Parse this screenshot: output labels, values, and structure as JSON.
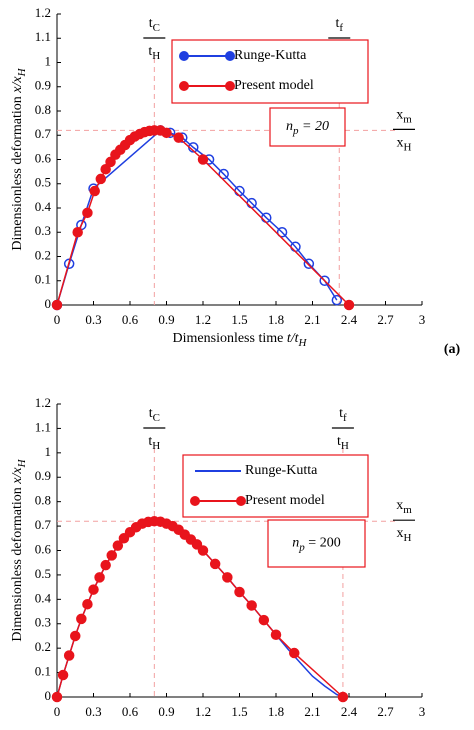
{
  "chart_data": [
    {
      "type": "line",
      "panel_label": "(a)",
      "xlabel": {
        "text": "Dimensionless time ",
        "math": "t/t",
        "sub": "H"
      },
      "ylabel": {
        "text": "Dimensionless deformation ",
        "math": "x/x",
        "sub": "H"
      },
      "xlim": [
        0,
        3
      ],
      "xticks": [
        0,
        0.3,
        0.6,
        0.9,
        1.2,
        1.5,
        1.8,
        2.1,
        2.4,
        2.7,
        3
      ],
      "ylim": [
        0,
        1.2
      ],
      "yticks": [
        0,
        0.1,
        0.2,
        0.3,
        0.4,
        0.5,
        0.6,
        0.7,
        0.8,
        0.9,
        1,
        1.1,
        1.2
      ],
      "ref_x": [
        0.8,
        2.32
      ],
      "ref_y": 0.72,
      "annotations": [
        {
          "num": "t",
          "num_sub": "C",
          "den": "t",
          "den_sub": "H"
        },
        {
          "num": "t",
          "num_sub": "f",
          "den": "t",
          "den_sub": "H"
        },
        {
          "num": "x",
          "num_sub": "m",
          "den": "x",
          "den_sub": "H"
        }
      ],
      "note": {
        "text": "n",
        "sub": "p",
        "rest": " = 20"
      },
      "series": [
        {
          "name": "Runge-Kutta",
          "color": "#1f3fe0",
          "marker": "open",
          "x": [
            0,
            0.1,
            0.2,
            0.3,
            0.85,
            0.93,
            1.03,
            1.12,
            1.25,
            1.37,
            1.5,
            1.6,
            1.72,
            1.85,
            1.96,
            2.07,
            2.2,
            2.3
          ],
          "values": [
            0,
            0.17,
            0.33,
            0.48,
            0.72,
            0.71,
            0.69,
            0.65,
            0.6,
            0.54,
            0.47,
            0.42,
            0.36,
            0.3,
            0.24,
            0.17,
            0.1,
            0.02
          ]
        },
        {
          "name": "Present model",
          "color": "#e8141c",
          "marker": "filled",
          "x": [
            0,
            0.17,
            0.25,
            0.31,
            0.36,
            0.4,
            0.44,
            0.48,
            0.52,
            0.56,
            0.6,
            0.64,
            0.68,
            0.72,
            0.76,
            0.8,
            0.85,
            0.9,
            1.0,
            1.2,
            2.4
          ],
          "values": [
            0,
            0.3,
            0.38,
            0.47,
            0.52,
            0.56,
            0.59,
            0.62,
            0.64,
            0.66,
            0.68,
            0.695,
            0.705,
            0.713,
            0.718,
            0.72,
            0.72,
            0.71,
            0.69,
            0.6,
            0
          ]
        }
      ]
    },
    {
      "type": "line",
      "ylabel": {
        "text": "Dimensionless deformation ",
        "math": "x/x",
        "sub": "H"
      },
      "xlim": [
        0,
        3
      ],
      "xticks": [
        0,
        0.3,
        0.6,
        0.9,
        1.2,
        1.5,
        1.8,
        2.1,
        2.4,
        2.7,
        3
      ],
      "ylim": [
        0,
        1.2
      ],
      "yticks": [
        0,
        0.1,
        0.2,
        0.3,
        0.4,
        0.5,
        0.6,
        0.7,
        0.8,
        0.9,
        1,
        1.1,
        1.2
      ],
      "ref_x": [
        0.8,
        2.35
      ],
      "ref_y": 0.72,
      "annotations": [
        {
          "num": "t",
          "num_sub": "C",
          "den": "t",
          "den_sub": "H"
        },
        {
          "num": "t",
          "num_sub": "f",
          "den": "t",
          "den_sub": "H"
        },
        {
          "num": "x",
          "num_sub": "m",
          "den": "x",
          "den_sub": "H"
        }
      ],
      "note": {
        "text": "n",
        "sub": "p",
        "rest": " = 200"
      },
      "series": [
        {
          "name": "Runge-Kutta",
          "color": "#1f3fe0",
          "marker": "none",
          "x": [
            0,
            0.05,
            0.1,
            0.15,
            0.2,
            0.3,
            0.4,
            0.5,
            0.6,
            0.7,
            0.8,
            0.9,
            1.0,
            1.1,
            1.2,
            1.3,
            1.4,
            1.5,
            1.6,
            1.7,
            1.8,
            1.9,
            2.0,
            2.1,
            2.2,
            2.3,
            2.35
          ],
          "values": [
            0,
            0.09,
            0.17,
            0.25,
            0.32,
            0.44,
            0.54,
            0.62,
            0.675,
            0.71,
            0.72,
            0.71,
            0.685,
            0.645,
            0.6,
            0.545,
            0.49,
            0.43,
            0.375,
            0.315,
            0.255,
            0.195,
            0.14,
            0.085,
            0.045,
            0.01,
            0
          ]
        },
        {
          "name": "Present model",
          "color": "#e8141c",
          "marker": "filled",
          "x": [
            0,
            0.05,
            0.1,
            0.15,
            0.2,
            0.25,
            0.3,
            0.35,
            0.4,
            0.45,
            0.5,
            0.55,
            0.6,
            0.65,
            0.7,
            0.75,
            0.8,
            0.85,
            0.9,
            0.95,
            1.0,
            1.05,
            1.1,
            1.15,
            1.2,
            1.3,
            1.4,
            1.5,
            1.6,
            1.7,
            1.8,
            1.95,
            2.35
          ],
          "values": [
            0,
            0.09,
            0.17,
            0.25,
            0.32,
            0.38,
            0.44,
            0.49,
            0.54,
            0.58,
            0.62,
            0.65,
            0.675,
            0.695,
            0.71,
            0.717,
            0.72,
            0.718,
            0.71,
            0.7,
            0.685,
            0.665,
            0.645,
            0.625,
            0.6,
            0.545,
            0.49,
            0.43,
            0.375,
            0.315,
            0.255,
            0.18,
            0
          ]
        }
      ]
    }
  ]
}
